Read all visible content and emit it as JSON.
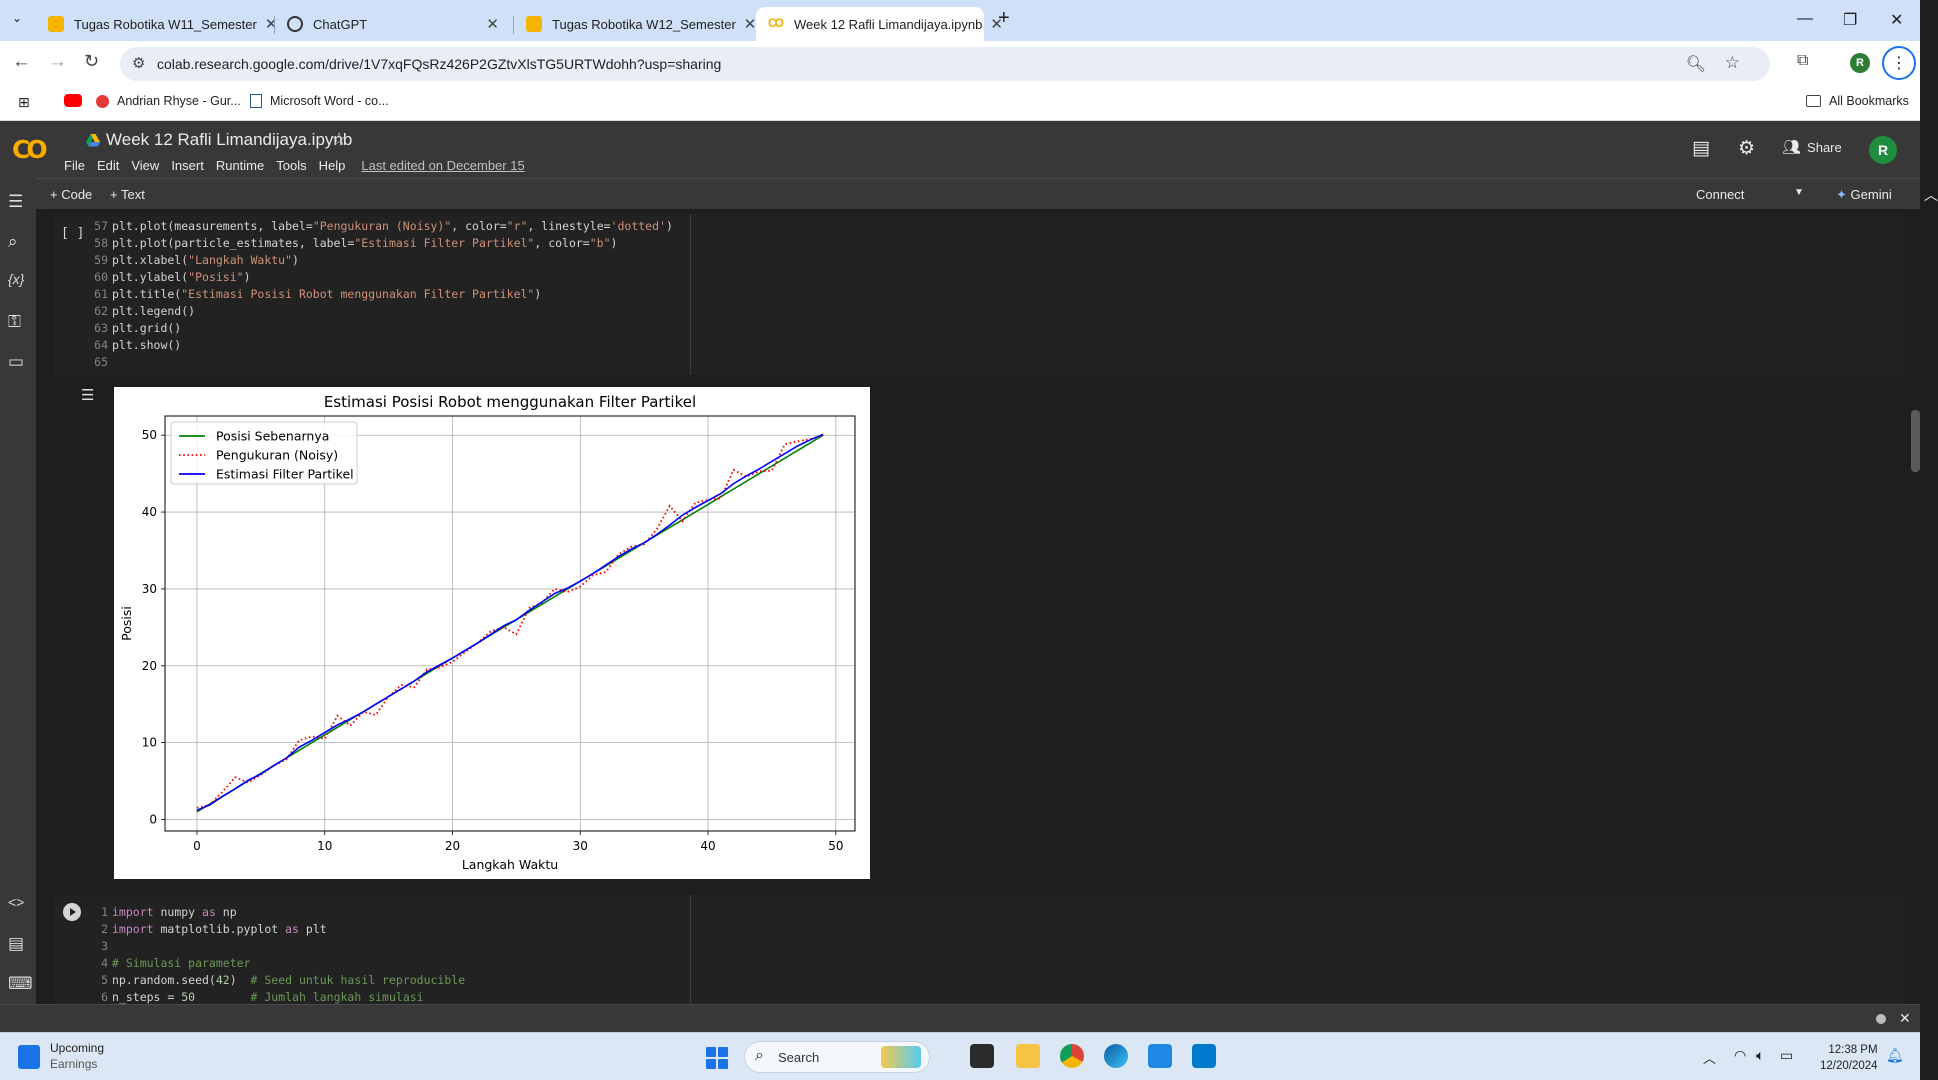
{
  "browser": {
    "tabs": [
      {
        "label": "Tugas Robotika W11_Semester",
        "favicon": "slides-icon",
        "active": false
      },
      {
        "label": "ChatGPT",
        "favicon": "chatgpt-icon",
        "active": false
      },
      {
        "label": "Tugas Robotika W12_Semester",
        "favicon": "slides-icon",
        "active": false
      },
      {
        "label": "Week 12 Rafli Limandijaya.ipynb",
        "favicon": "colab-icon",
        "active": true
      }
    ],
    "url": "colab.research.google.com/drive/1V7xqFQsRz426P2GZtvXlsTG5URTWdohh?usp=sharing",
    "profile_initial": "R",
    "bookmarks": [
      {
        "label": "",
        "icon": "youtube-icon"
      },
      {
        "label": "Andrian Rhyse - Gur...",
        "icon": "record-icon"
      },
      {
        "label": "Microsoft Word - co...",
        "icon": "document-icon"
      }
    ],
    "all_bookmarks": "All Bookmarks"
  },
  "colab": {
    "notebook_title": "Week 12 Rafli Limandijaya.ipynb",
    "menu": [
      "File",
      "Edit",
      "View",
      "Insert",
      "Runtime",
      "Tools",
      "Help"
    ],
    "last_edited": "Last edited on December 15",
    "share_label": "Share",
    "profile_initial": "R",
    "add_code": "+ Code",
    "add_text": "+ Text",
    "connect": "Connect",
    "gemini": "Gemini"
  },
  "cell1": {
    "bracket": "[ ]",
    "lines": [
      {
        "n": "57",
        "code": "plt.plot(measurements, label=\"Pengukuran (Noisy)\", color=\"r\", linestyle='dotted')"
      },
      {
        "n": "58",
        "code": "plt.plot(particle_estimates, label=\"Estimasi Filter Partikel\", color=\"b\")"
      },
      {
        "n": "59",
        "code": "plt.xlabel(\"Langkah Waktu\")"
      },
      {
        "n": "60",
        "code": "plt.ylabel(\"Posisi\")"
      },
      {
        "n": "61",
        "code": "plt.title(\"Estimasi Posisi Robot menggunakan Filter Partikel\")"
      },
      {
        "n": "62",
        "code": "plt.legend()"
      },
      {
        "n": "63",
        "code": "plt.grid()"
      },
      {
        "n": "64",
        "code": "plt.show()"
      },
      {
        "n": "65",
        "code": ""
      }
    ]
  },
  "cell2": {
    "lines": [
      {
        "n": "1",
        "code": "import numpy as np"
      },
      {
        "n": "2",
        "code": "import matplotlib.pyplot as plt"
      },
      {
        "n": "3",
        "code": ""
      },
      {
        "n": "4",
        "code": "# Simulasi parameter"
      },
      {
        "n": "5",
        "code": "np.random.seed(42)  # Seed untuk hasil reproducible"
      },
      {
        "n": "6",
        "code": "n_steps = 50        # Jumlah langkah simulasi"
      }
    ]
  },
  "chart_data": {
    "type": "line",
    "title": "Estimasi Posisi Robot menggunakan Filter Partikel",
    "xlabel": "Langkah Waktu",
    "ylabel": "Posisi",
    "xlim": [
      -2.5,
      51.5
    ],
    "ylim": [
      -1.5,
      52.5
    ],
    "xticks": [
      0,
      10,
      20,
      30,
      40,
      50
    ],
    "yticks": [
      0,
      10,
      20,
      30,
      40,
      50
    ],
    "grid": true,
    "legend": "upper-left",
    "x": [
      0,
      1,
      2,
      3,
      4,
      5,
      6,
      7,
      8,
      9,
      10,
      11,
      12,
      13,
      14,
      15,
      16,
      17,
      18,
      19,
      20,
      21,
      22,
      23,
      24,
      25,
      26,
      27,
      28,
      29,
      30,
      31,
      32,
      33,
      34,
      35,
      36,
      37,
      38,
      39,
      40,
      41,
      42,
      43,
      44,
      45,
      46,
      47,
      48,
      49
    ],
    "series": [
      {
        "name": "Posisi Sebenarnya",
        "color": "#008000",
        "style": "solid",
        "values": [
          1.0,
          2.0,
          3.0,
          4.0,
          5.0,
          6.0,
          7.0,
          8.0,
          9.0,
          10.0,
          11.0,
          12.0,
          13.0,
          14.0,
          15.0,
          16.0,
          17.0,
          18.0,
          19.0,
          20.0,
          21.0,
          22.0,
          23.0,
          24.0,
          25.0,
          26.0,
          27.0,
          28.0,
          29.0,
          30.0,
          31.0,
          32.0,
          33.0,
          34.0,
          35.0,
          36.0,
          37.0,
          38.0,
          39.0,
          40.0,
          41.0,
          42.0,
          43.0,
          44.0,
          45.0,
          46.0,
          47.0,
          48.0,
          49.0,
          50.0
        ]
      },
      {
        "name": "Pengukuran (Noisy)",
        "color": "#ff0000",
        "style": "dotted",
        "values": [
          1.5,
          1.9,
          3.6,
          5.5,
          4.8,
          5.8,
          7.0,
          7.8,
          10.3,
          10.8,
          10.5,
          13.5,
          12.2,
          14.0,
          13.6,
          16.0,
          17.5,
          17.2,
          19.5,
          19.8,
          20.5,
          21.8,
          23.0,
          24.5,
          25.0,
          24.1,
          27.5,
          28.2,
          30.0,
          29.6,
          30.3,
          31.8,
          32.2,
          34.5,
          35.5,
          35.8,
          37.8,
          40.8,
          38.8,
          41.2,
          41.6,
          41.8,
          45.5,
          44.6,
          45.3,
          45.4,
          48.8,
          49.2,
          49.5,
          50.0
        ]
      },
      {
        "name": "Estimasi Filter Partikel",
        "color": "#0000ff",
        "style": "solid",
        "values": [
          1.2,
          1.9,
          3.0,
          4.0,
          5.1,
          5.9,
          7.0,
          8.0,
          9.4,
          10.3,
          11.3,
          12.3,
          13.1,
          14.0,
          15.0,
          16.0,
          17.0,
          18.0,
          19.2,
          20.1,
          21.0,
          22.0,
          23.0,
          24.1,
          25.2,
          26.0,
          27.2,
          28.3,
          29.4,
          30.1,
          31.0,
          32.0,
          33.1,
          34.2,
          35.2,
          36.0,
          37.1,
          38.3,
          39.6,
          40.6,
          41.5,
          42.4,
          43.7,
          44.7,
          45.6,
          46.6,
          47.6,
          48.6,
          49.4,
          50.1
        ]
      }
    ]
  },
  "taskbar": {
    "weather_title": "Upcoming",
    "weather_sub": "Earnings",
    "search_placeholder": "Search",
    "time": "12:38 PM",
    "date": "12/20/2024"
  }
}
